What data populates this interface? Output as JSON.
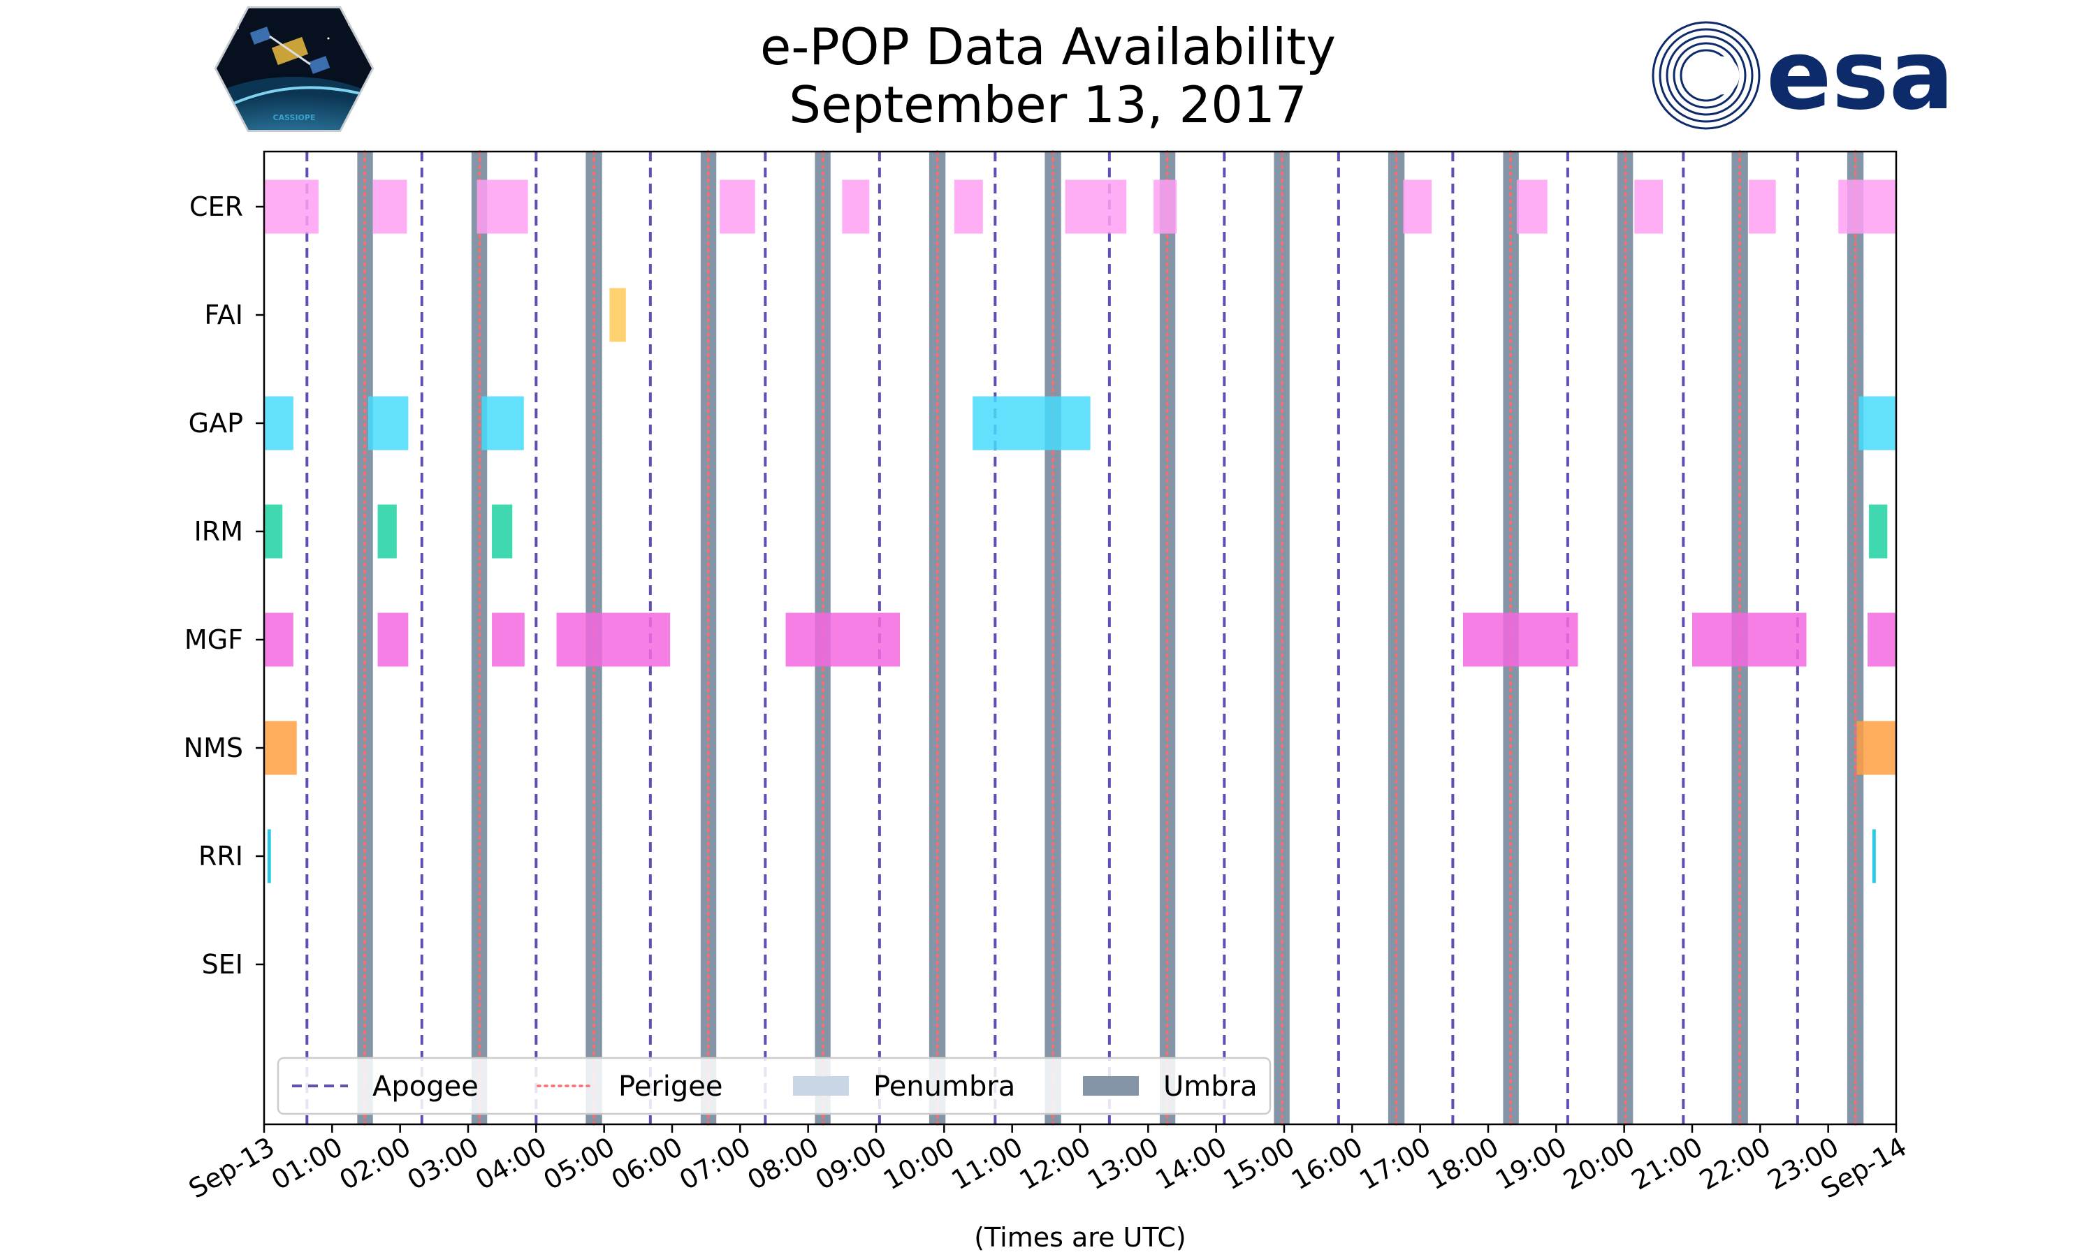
{
  "chart_data": {
    "type": "gantt",
    "title": "e-POP Data Availability",
    "subtitle": "September 13, 2017",
    "xlabel": "(Times are UTC)",
    "x_range_hours": [
      0,
      24
    ],
    "x_ticks": [
      {
        "hour": 0,
        "label": "Sep-13"
      },
      {
        "hour": 1,
        "label": "01:00"
      },
      {
        "hour": 2,
        "label": "02:00"
      },
      {
        "hour": 3,
        "label": "03:00"
      },
      {
        "hour": 4,
        "label": "04:00"
      },
      {
        "hour": 5,
        "label": "05:00"
      },
      {
        "hour": 6,
        "label": "06:00"
      },
      {
        "hour": 7,
        "label": "07:00"
      },
      {
        "hour": 8,
        "label": "08:00"
      },
      {
        "hour": 9,
        "label": "09:00"
      },
      {
        "hour": 10,
        "label": "10:00"
      },
      {
        "hour": 11,
        "label": "11:00"
      },
      {
        "hour": 12,
        "label": "12:00"
      },
      {
        "hour": 13,
        "label": "13:00"
      },
      {
        "hour": 14,
        "label": "14:00"
      },
      {
        "hour": 15,
        "label": "15:00"
      },
      {
        "hour": 16,
        "label": "16:00"
      },
      {
        "hour": 17,
        "label": "17:00"
      },
      {
        "hour": 18,
        "label": "18:00"
      },
      {
        "hour": 19,
        "label": "19:00"
      },
      {
        "hour": 20,
        "label": "20:00"
      },
      {
        "hour": 21,
        "label": "21:00"
      },
      {
        "hour": 22,
        "label": "22:00"
      },
      {
        "hour": 23,
        "label": "23:00"
      },
      {
        "hour": 24,
        "label": "Sep-14"
      }
    ],
    "instruments": [
      "CER",
      "FAI",
      "GAP",
      "IRM",
      "MGF",
      "NMS",
      "RRI",
      "SEI"
    ],
    "colors": {
      "CER": "#ff9ff3",
      "FAI": "#feca57",
      "GAP": "#48dbfb",
      "IRM": "#1dd1a1",
      "MGF": "#f368e0",
      "NMS": "#ff9f43",
      "RRI": "#0abde3",
      "SEI": "#c8d6e5",
      "apogee": "#5f4fb5",
      "perigee": "#ff6b6b",
      "penumbra": "#c8d6e5",
      "umbra": "#8395a7"
    },
    "intervals": {
      "CER": [
        [
          0.0,
          0.8
        ],
        [
          1.6,
          2.1
        ],
        [
          3.13,
          3.88
        ],
        [
          6.7,
          7.22
        ],
        [
          8.5,
          8.9
        ],
        [
          10.15,
          10.57
        ],
        [
          11.78,
          12.68
        ],
        [
          13.08,
          13.42
        ],
        [
          16.75,
          17.17
        ],
        [
          18.42,
          18.87
        ],
        [
          20.15,
          20.57
        ],
        [
          21.83,
          22.23
        ],
        [
          23.15,
          24.0
        ]
      ],
      "FAI": [
        [
          5.08,
          5.32
        ]
      ],
      "GAP": [
        [
          0.0,
          0.43
        ],
        [
          1.53,
          2.12
        ],
        [
          3.2,
          3.82
        ],
        [
          10.42,
          12.15
        ],
        [
          23.45,
          24.0
        ]
      ],
      "IRM": [
        [
          0.0,
          0.27
        ],
        [
          1.67,
          1.95
        ],
        [
          3.35,
          3.65
        ],
        [
          23.6,
          23.87
        ]
      ],
      "MGF": [
        [
          0.0,
          0.43
        ],
        [
          1.67,
          2.12
        ],
        [
          3.35,
          3.83
        ],
        [
          4.3,
          5.97
        ],
        [
          7.67,
          9.35
        ],
        [
          17.63,
          19.32
        ],
        [
          21.0,
          22.68
        ],
        [
          23.58,
          24.0
        ]
      ],
      "NMS": [
        [
          0.0,
          0.48
        ],
        [
          23.42,
          24.0
        ]
      ],
      "RRI": [
        [
          0.05,
          0.1
        ],
        [
          23.65,
          23.7
        ]
      ],
      "SEI": []
    },
    "apogee_hours": [
      0.63,
      2.32,
      4.0,
      5.68,
      7.37,
      9.05,
      10.75,
      12.43,
      14.12,
      15.8,
      17.48,
      19.17,
      20.87,
      22.55
    ],
    "perigee_hours": [
      1.48,
      3.17,
      4.85,
      6.53,
      8.22,
      9.9,
      11.6,
      13.28,
      14.97,
      16.65,
      18.33,
      20.02,
      21.7,
      23.4
    ],
    "umbra": [
      [
        1.37,
        1.6
      ],
      [
        3.05,
        3.28
      ],
      [
        4.73,
        4.97
      ],
      [
        6.42,
        6.65
      ],
      [
        8.1,
        8.33
      ],
      [
        9.78,
        10.02
      ],
      [
        11.48,
        11.72
      ],
      [
        13.17,
        13.4
      ],
      [
        14.85,
        15.08
      ],
      [
        16.53,
        16.77
      ],
      [
        18.22,
        18.45
      ],
      [
        19.9,
        20.13
      ],
      [
        21.58,
        21.82
      ],
      [
        23.28,
        23.52
      ]
    ],
    "legend": {
      "position": "lower-left",
      "entries": [
        {
          "key": "apogee",
          "label": "Apogee"
        },
        {
          "key": "perigee",
          "label": "Perigee"
        },
        {
          "key": "penumbra",
          "label": "Penumbra"
        },
        {
          "key": "umbra",
          "label": "Umbra"
        }
      ]
    }
  },
  "logos": {
    "left": {
      "text": "CASSIOPE",
      "icon": "cassiope-mission-logo"
    },
    "right": {
      "text": "esa",
      "icon": "esa-logo"
    }
  }
}
